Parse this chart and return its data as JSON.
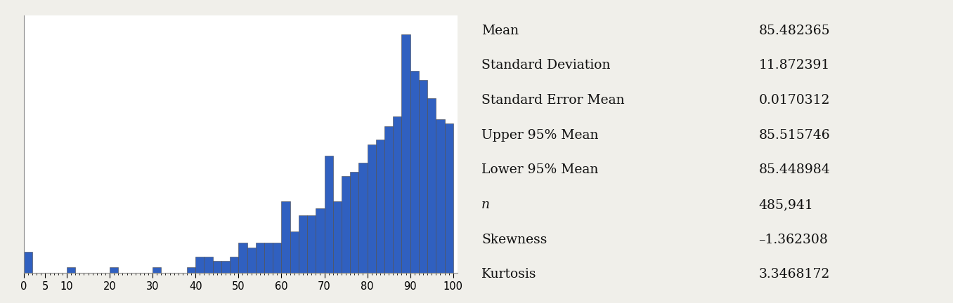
{
  "stats_labels": [
    "Mean",
    "Standard Deviation",
    "Standard Error Mean",
    "Upper 95% Mean",
    "Lower 95% Mean",
    "n",
    "Skewness",
    "Kurtosis"
  ],
  "stats_italic": [
    false,
    false,
    false,
    false,
    false,
    true,
    false,
    false
  ],
  "stats_values": [
    "85.482365",
    "11.872391",
    "0.0170312",
    "85.515746",
    "85.448984",
    "485,941",
    "–1.362308",
    "3.3468172"
  ],
  "bar_color": "#3060c0",
  "bar_edge_color": "#4a4a4a",
  "background_color": "#f0efea",
  "plot_bg_color": "#ffffff",
  "xlim": [
    0,
    101
  ],
  "x_tick_positions": [
    0,
    5,
    10,
    20,
    30,
    40,
    50,
    60,
    70,
    80,
    90,
    100
  ],
  "x_tick_labels": [
    "0",
    "5",
    "10",
    "20",
    "30",
    "40",
    "50",
    "60",
    "70",
    "80",
    "90",
    "100"
  ],
  "bin_left_edges": [
    0,
    2,
    4,
    6,
    8,
    10,
    12,
    14,
    16,
    18,
    20,
    22,
    24,
    26,
    28,
    30,
    32,
    34,
    36,
    38,
    40,
    42,
    44,
    46,
    48,
    50,
    52,
    54,
    56,
    58,
    60,
    62,
    64,
    66,
    68,
    70,
    72,
    74,
    76,
    78,
    80,
    82,
    84,
    86,
    88,
    90,
    92,
    94,
    96,
    98
  ],
  "bar_heights": [
    0.45,
    0.0,
    0.0,
    0.0,
    0.0,
    0.12,
    0.0,
    0.0,
    0.0,
    0.0,
    0.12,
    0.0,
    0.0,
    0.0,
    0.0,
    0.12,
    0.0,
    0.0,
    0.0,
    0.12,
    0.35,
    0.35,
    0.25,
    0.25,
    0.35,
    0.65,
    0.55,
    0.65,
    0.65,
    0.65,
    1.55,
    0.9,
    1.25,
    1.25,
    1.4,
    2.55,
    1.55,
    2.1,
    2.2,
    2.4,
    2.8,
    2.9,
    3.2,
    3.4,
    5.2,
    4.4,
    4.2,
    3.8,
    3.35,
    3.25
  ]
}
